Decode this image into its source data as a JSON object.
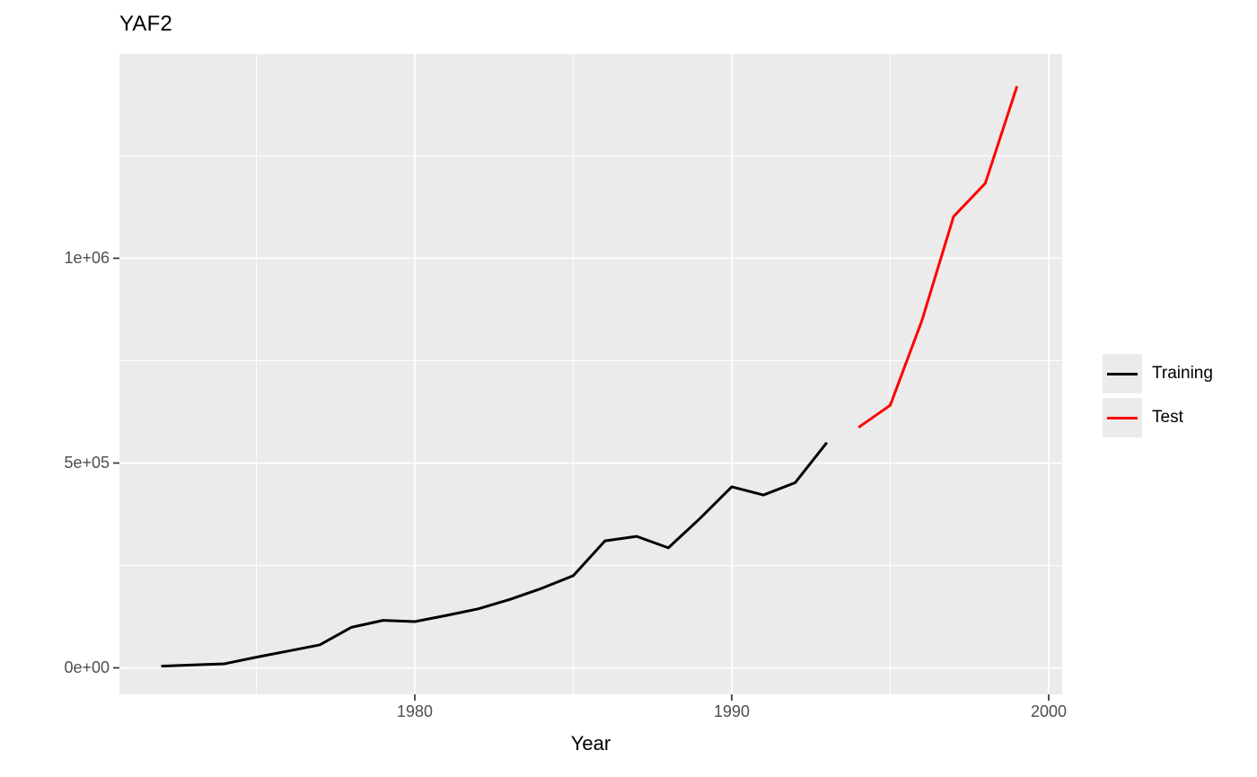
{
  "title": "YAF2",
  "x_axis": {
    "title": "Year",
    "tick_labels": [
      "1980",
      "1990",
      "2000"
    ]
  },
  "y_axis": {
    "title": "",
    "tick_labels": [
      "0e+00",
      "5e+05",
      "1e+06"
    ]
  },
  "legend": {
    "items": [
      {
        "label": "Training",
        "color": "#000000"
      },
      {
        "label": "Test",
        "color": "#FF0000"
      }
    ]
  },
  "colors": {
    "panel_background": "#EBEBEB",
    "gridline": "#FFFFFF",
    "axis_text": "#4D4D4D",
    "tick_mark": "#333333",
    "training_line": "#000000",
    "test_line": "#FF0000"
  },
  "chart_data": {
    "type": "line",
    "title": "YAF2",
    "xlabel": "Year",
    "ylabel": "",
    "grid": true,
    "legend_position": "right",
    "xlim": [
      1970.7,
      2000.4
    ],
    "ylim": [
      -65000,
      1500000
    ],
    "x_major_breaks": [
      1980,
      1990,
      2000
    ],
    "x_minor_breaks": [
      1975,
      1985,
      1995
    ],
    "y_major_breaks": [
      0,
      500000,
      1000000
    ],
    "y_minor_breaks": [
      250000,
      750000,
      1250000
    ],
    "x_tick_labels": [
      "1980",
      "1990",
      "2000"
    ],
    "y_tick_labels": [
      "0e+00",
      "5e+05",
      "1e+06"
    ],
    "series": [
      {
        "name": "Training",
        "color": "#000000",
        "x": [
          1972,
          1973,
          1974,
          1975,
          1976,
          1977,
          1978,
          1979,
          1980,
          1981,
          1982,
          1983,
          1984,
          1985,
          1986,
          1987,
          1988,
          1989,
          1990,
          1991,
          1992,
          1993
        ],
        "y": [
          4000,
          7000,
          10000,
          26000,
          41000,
          56000,
          99000,
          116000,
          113000,
          128000,
          144000,
          167000,
          194000,
          225000,
          310000,
          321000,
          293000,
          365000,
          442000,
          422000,
          452000,
          550000
        ]
      },
      {
        "name": "Test",
        "color": "#FF0000",
        "x": [
          1994,
          1995,
          1996,
          1997,
          1998,
          1999
        ],
        "y": [
          587000,
          641000,
          848000,
          1102000,
          1183000,
          1420000
        ]
      }
    ]
  }
}
